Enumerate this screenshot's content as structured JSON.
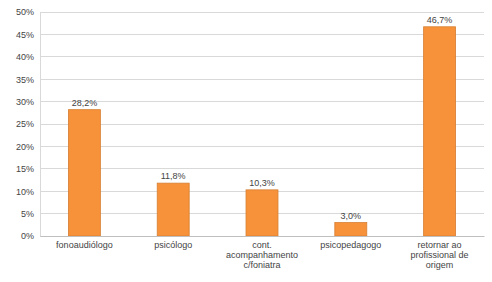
{
  "chart_data": {
    "type": "bar",
    "categories": [
      "fonoaudiólogo",
      "psicólogo",
      "cont. acompanhamento c/foniatra",
      "psicopedagogo",
      "retornar ao profissional de origem"
    ],
    "values": [
      28.2,
      11.8,
      10.3,
      3.0,
      46.7
    ],
    "value_labels": [
      "28,2%",
      "11,8%",
      "10,3%",
      "3,0%",
      "46,7%"
    ],
    "color": "#f7923a",
    "ylim": [
      0,
      50
    ],
    "yticks": [
      {
        "value": 0,
        "label": "0%"
      },
      {
        "value": 5,
        "label": "5%"
      },
      {
        "value": 10,
        "label": "10%"
      },
      {
        "value": 15,
        "label": "15%"
      },
      {
        "value": 20,
        "label": "20%"
      },
      {
        "value": 25,
        "label": "25%"
      },
      {
        "value": 30,
        "label": "30%"
      },
      {
        "value": 35,
        "label": "35%"
      },
      {
        "value": 40,
        "label": "40%"
      },
      {
        "value": 45,
        "label": "45%"
      },
      {
        "value": 50,
        "label": "50%"
      }
    ],
    "grid": true,
    "data_labels": true
  }
}
